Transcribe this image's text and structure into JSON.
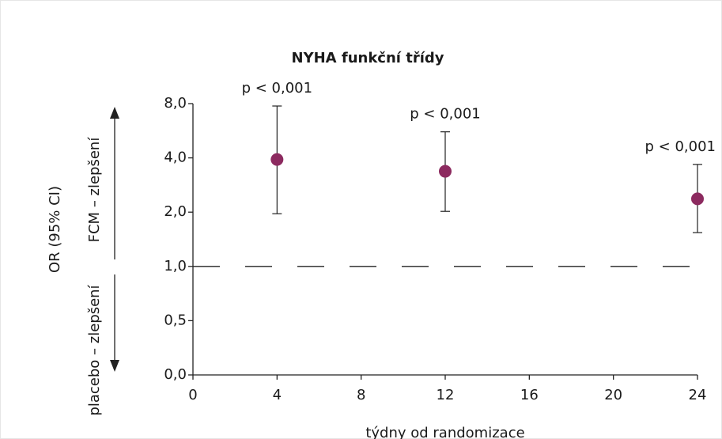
{
  "chart_data": {
    "type": "errorbar",
    "title": "NYHA funkční třídy",
    "x_label": "týdny od randomizace",
    "y_label": "OR (95% CI)",
    "upper_arrow_label": "FCM – zlepšení",
    "lower_arrow_label": "placebo – zlepšení",
    "x": [
      4,
      12,
      24
    ],
    "series": [
      {
        "color": "#8c2a5f",
        "values": [
          3.92,
          3.37,
          2.37
        ],
        "lower": [
          1.96,
          2.02,
          1.54
        ],
        "upper": [
          7.76,
          5.58,
          3.68
        ],
        "point_labels": [
          "p < 0,001",
          "p < 0,001",
          "p < 0,001"
        ]
      }
    ],
    "xlim": [
      0,
      24
    ],
    "xticks": [
      0,
      4,
      8,
      12,
      16,
      20,
      24
    ],
    "ylim": [
      0,
      8
    ],
    "yscale": "evenly-spaced-ticks",
    "yticks": [
      {
        "value": 0,
        "label": "0,0"
      },
      {
        "value": 0.5,
        "label": "0,5"
      },
      {
        "value": 1,
        "label": "1,0"
      },
      {
        "value": 2,
        "label": "2,0"
      },
      {
        "value": 4,
        "label": "4,0"
      },
      {
        "value": 8,
        "label": "8,0"
      }
    ],
    "reference_line": 1
  }
}
